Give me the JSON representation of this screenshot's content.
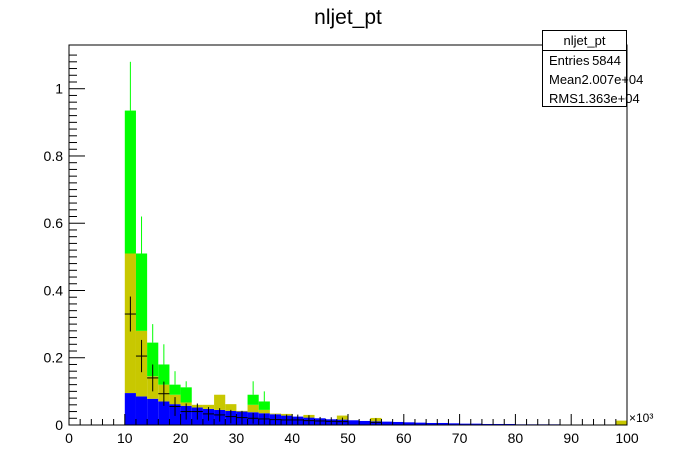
{
  "title": "nljet_pt",
  "statbox": {
    "name": "nljet_pt",
    "rows": [
      {
        "label": "Entries",
        "value": "5844"
      },
      {
        "label": "Mean",
        "value": "2.007e+04"
      },
      {
        "label": "RMS",
        "value": "1.363e+04"
      }
    ]
  },
  "chart_data": {
    "type": "bar",
    "stacked": true,
    "title": "nljet_pt",
    "xlabel": "",
    "ylabel": "",
    "xlim": [
      0,
      100
    ],
    "ylim": [
      0,
      1.13
    ],
    "x_multiplier": "×10³",
    "x_ticks": [
      0,
      10,
      20,
      30,
      40,
      50,
      60,
      70,
      80,
      90,
      100
    ],
    "y_ticks": [
      0,
      0.2,
      0.4,
      0.6,
      0.8,
      1
    ],
    "y_tick_labels": [
      "0",
      "0.2",
      "0.4",
      "0.6",
      "0.8",
      "1"
    ],
    "x_tick_labels": [
      "0",
      "10",
      "20",
      "30",
      "40",
      "50",
      "60",
      "70",
      "80",
      "90",
      "100"
    ],
    "bin_width": 2,
    "bin_low_edges": [
      10,
      12,
      14,
      16,
      18,
      20,
      22,
      24,
      26,
      28,
      30,
      32,
      34,
      36,
      38,
      40,
      42,
      44,
      46,
      48,
      50,
      52,
      54,
      56,
      58,
      60,
      62,
      64,
      66,
      68,
      70,
      72,
      74,
      76,
      78,
      80,
      82,
      84,
      86,
      88,
      90,
      92,
      94,
      96,
      98
    ],
    "colors": {
      "blue": "#0000ff",
      "olive": "#c8c800",
      "green": "#00ff00"
    },
    "series": [
      {
        "color": "#0000ff",
        "values": [
          0.095,
          0.085,
          0.078,
          0.07,
          0.062,
          0.057,
          0.052,
          0.048,
          0.045,
          0.042,
          0.04,
          0.038,
          0.035,
          0.032,
          0.028,
          0.025,
          0.022,
          0.02,
          0.017,
          0.016,
          0.014,
          0.012,
          0.011,
          0.01,
          0.009,
          0.008,
          0.007,
          0.006,
          0.006,
          0.005,
          0.004,
          0.004,
          0.003,
          0.003,
          0.003,
          0.002,
          0.002,
          0.002,
          0.002,
          0.001,
          0.001,
          0.001,
          0.001,
          0.001,
          0.001
        ]
      },
      {
        "color": "#c8c800",
        "values": [
          0.415,
          0.195,
          0.067,
          0.05,
          0.028,
          0.01,
          0.008,
          0.012,
          0.045,
          0.02,
          0.002,
          0.022,
          0.01,
          0.002,
          0.005,
          0.0,
          0.008,
          0.0,
          0.0,
          0.012,
          0.0,
          0.0,
          0.01,
          0.0,
          0.0,
          0.0,
          0.0,
          0.0,
          0.0,
          0.0,
          0.0,
          0.0,
          0.0,
          0.0,
          0.0,
          0.0,
          0.0,
          0.0,
          0.0,
          0.0,
          0.0,
          0.0,
          0.0,
          0.0,
          0.012
        ]
      },
      {
        "color": "#00ff00",
        "values": [
          0.425,
          0.23,
          0.1,
          0.06,
          0.03,
          0.045,
          0.0,
          0.0,
          0.0,
          0.0,
          0.0,
          0.03,
          0.025,
          0.0,
          0.0,
          0.0,
          0.0,
          0.0,
          0.0,
          0.0,
          0.0,
          0.0,
          0.0,
          0.0,
          0.0,
          0.0,
          0.0,
          0.0,
          0.0,
          0.0,
          0.0,
          0.0,
          0.0,
          0.0,
          0.0,
          0.0,
          0.0,
          0.0,
          0.0,
          0.0,
          0.0,
          0.0,
          0.0,
          0.0,
          0.0
        ]
      }
    ],
    "green_error_tops": [
      1.08,
      0.62,
      0.3,
      0.24,
      0.16,
      0.13,
      0.0,
      0.0,
      0.0,
      0.0,
      0.0,
      0.13,
      0.1,
      0.0,
      0.0,
      0.0,
      0.0,
      0.0,
      0.0,
      0.0,
      0.0,
      0.0,
      0.0,
      0.0,
      0.0,
      0.0,
      0.0,
      0.0,
      0.0,
      0.0,
      0.0,
      0.0,
      0.0,
      0.0,
      0.0,
      0.0,
      0.0,
      0.0,
      0.0,
      0.0,
      0.0,
      0.0,
      0.0,
      0.0,
      0.0
    ],
    "data_points": {
      "x": [
        11,
        13,
        15,
        17,
        19,
        21,
        23,
        25,
        27,
        29,
        31,
        33,
        35,
        37,
        39,
        41,
        43,
        45,
        47,
        49,
        55
      ],
      "y": [
        0.33,
        0.205,
        0.14,
        0.093,
        0.055,
        0.04,
        0.04,
        0.033,
        0.03,
        0.025,
        0.022,
        0.02,
        0.018,
        0.016,
        0.015,
        0.015,
        0.013,
        0.012,
        0.011,
        0.01,
        0.008
      ],
      "yerr": [
        0.013,
        0.012,
        0.01,
        0.009,
        0.007,
        0.006,
        0.006,
        0.005,
        0.005,
        0.005,
        0.005,
        0.004,
        0.004,
        0.004,
        0.004,
        0.004,
        0.004,
        0.003,
        0.003,
        0.003,
        0.003
      ],
      "xerr": 1
    }
  }
}
